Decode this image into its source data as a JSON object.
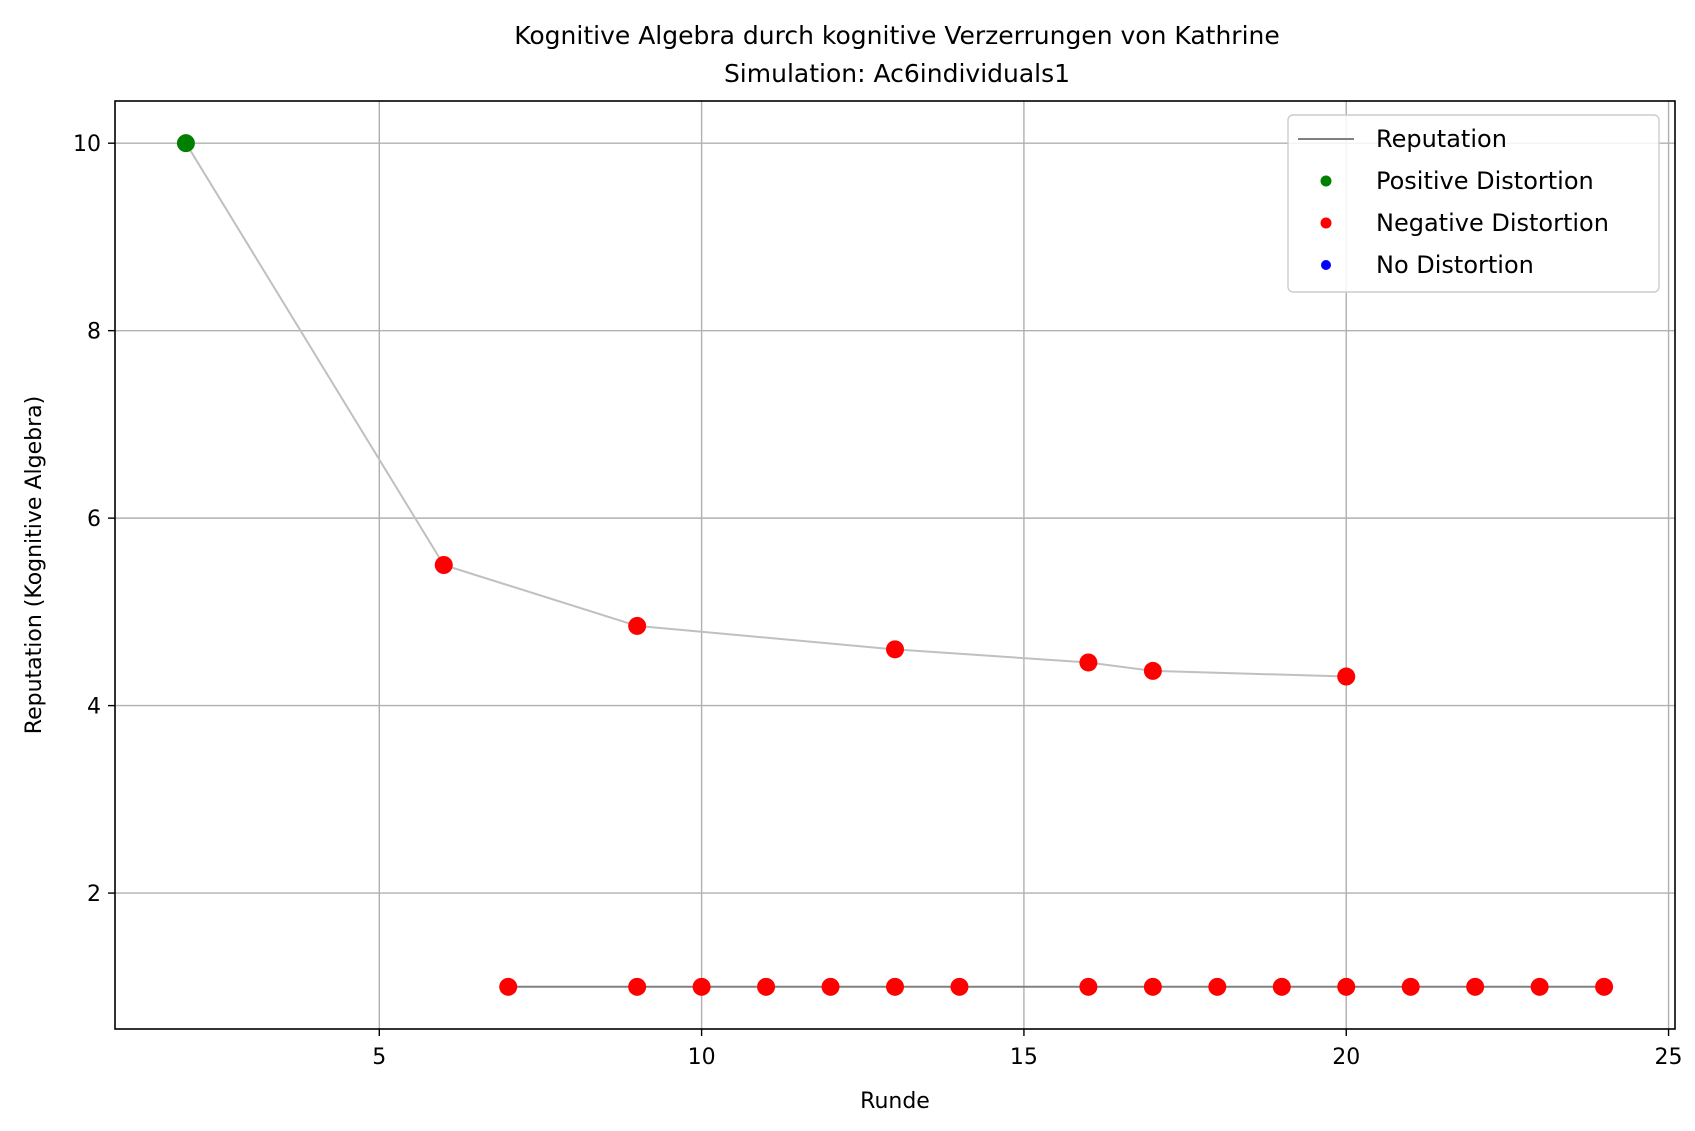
{
  "chart_data": {
    "type": "scatter",
    "title": "Kognitive Algebra durch kognitive Verzerrungen von Kathrine",
    "subtitle": "Simulation: Ac6individuals1",
    "xlabel": "Runde",
    "ylabel": "Reputation (Kognitive Algebra)",
    "xlim": [
      0.9,
      25.1
    ],
    "ylim": [
      0.55,
      10.45
    ],
    "xticks": [
      5,
      10,
      15,
      20,
      25
    ],
    "yticks": [
      2,
      4,
      6,
      8,
      10
    ],
    "grid": true,
    "legend_position": "top-right",
    "colors": {
      "positive": "#008000",
      "negative": "#ff0000",
      "none": "#0000ff",
      "line_light": "#c0c0c0",
      "line_dark": "#808080",
      "grid": "#b0b0b0"
    },
    "legend": [
      {
        "label": "Reputation",
        "kind": "line",
        "color": "#808080"
      },
      {
        "label": "Positive Distortion",
        "kind": "marker",
        "color": "#008000"
      },
      {
        "label": "Negative Distortion",
        "kind": "marker",
        "color": "#ff0000"
      },
      {
        "label": "No Distortion",
        "kind": "marker",
        "color": "#0000ff"
      }
    ],
    "series": [
      {
        "line_color": "#c0c0c0",
        "points": [
          {
            "x": 2,
            "y": 10.0,
            "distortion": "positive"
          },
          {
            "x": 6,
            "y": 5.5,
            "distortion": "negative"
          },
          {
            "x": 9,
            "y": 4.85,
            "distortion": "negative"
          },
          {
            "x": 13,
            "y": 4.6,
            "distortion": "negative"
          },
          {
            "x": 16,
            "y": 4.46,
            "distortion": "negative"
          },
          {
            "x": 17,
            "y": 4.37,
            "distortion": "negative"
          },
          {
            "x": 20,
            "y": 4.31,
            "distortion": "negative"
          }
        ]
      },
      {
        "line_color": "#808080",
        "points": [
          {
            "x": 7,
            "y": 1.0,
            "distortion": "negative"
          },
          {
            "x": 9,
            "y": 1.0,
            "distortion": "negative"
          },
          {
            "x": 10,
            "y": 1.0,
            "distortion": "negative"
          },
          {
            "x": 11,
            "y": 1.0,
            "distortion": "negative"
          },
          {
            "x": 12,
            "y": 1.0,
            "distortion": "negative"
          },
          {
            "x": 13,
            "y": 1.0,
            "distortion": "negative"
          },
          {
            "x": 14,
            "y": 1.0,
            "distortion": "negative"
          },
          {
            "x": 16,
            "y": 1.0,
            "distortion": "negative"
          },
          {
            "x": 17,
            "y": 1.0,
            "distortion": "negative"
          },
          {
            "x": 18,
            "y": 1.0,
            "distortion": "negative"
          },
          {
            "x": 19,
            "y": 1.0,
            "distortion": "negative"
          },
          {
            "x": 20,
            "y": 1.0,
            "distortion": "negative"
          },
          {
            "x": 21,
            "y": 1.0,
            "distortion": "negative"
          },
          {
            "x": 22,
            "y": 1.0,
            "distortion": "negative"
          },
          {
            "x": 23,
            "y": 1.0,
            "distortion": "negative"
          },
          {
            "x": 24,
            "y": 1.0,
            "distortion": "negative"
          }
        ]
      }
    ]
  }
}
